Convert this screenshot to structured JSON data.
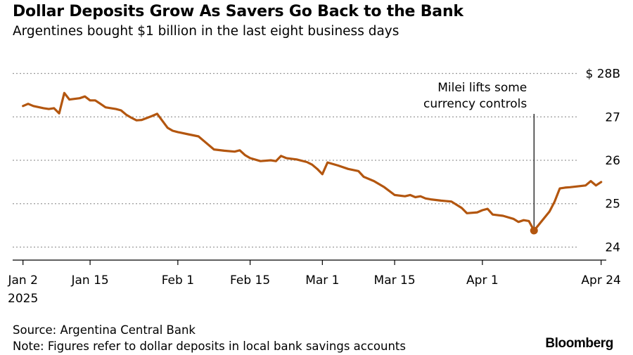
{
  "header": {
    "title": "Dollar Deposits Grow As Savers Go Back to the Bank",
    "subtitle": "Argentines bought $1 billion in the last eight business days"
  },
  "footer": {
    "source": "Source: Argentina Central Bank",
    "note": "Note: Figures refer to dollar deposits in local bank savings accounts",
    "brand": "Bloomberg"
  },
  "chart_data": {
    "type": "line",
    "title": "Dollar Deposits Grow As Savers Go Back to the Bank",
    "subtitle": "Argentines bought $1 billion in the last eight business days",
    "xlabel": "",
    "ylabel": "",
    "ylim": [
      23.7,
      28.3
    ],
    "xlim": [
      "2024-12-31",
      "2025-04-25"
    ],
    "grid": true,
    "line_color": "#b3560f",
    "y_ticks": [
      {
        "value": 28,
        "label": "$ 28B"
      },
      {
        "value": 27,
        "label": "27"
      },
      {
        "value": 26,
        "label": "26"
      },
      {
        "value": 25,
        "label": "25"
      },
      {
        "value": 24,
        "label": "24"
      }
    ],
    "x_ticks": [
      {
        "date": "2025-01-02",
        "label": "Jan 2",
        "label2": "2025"
      },
      {
        "date": "2025-01-15",
        "label": "Jan 15",
        "label2": ""
      },
      {
        "date": "2025-02-01",
        "label": "Feb 1",
        "label2": ""
      },
      {
        "date": "2025-02-15",
        "label": "Feb 15",
        "label2": ""
      },
      {
        "date": "2025-03-01",
        "label": "Mar 1",
        "label2": ""
      },
      {
        "date": "2025-03-15",
        "label": "Mar 15",
        "label2": ""
      },
      {
        "date": "2025-04-01",
        "label": "Apr 1",
        "label2": ""
      },
      {
        "date": "2025-04-24",
        "label": "Apr 24",
        "label2": ""
      }
    ],
    "series": [
      {
        "points": [
          [
            "2025-01-02",
            27.25
          ],
          [
            "2025-01-03",
            27.3
          ],
          [
            "2025-01-04",
            27.25
          ],
          [
            "2025-01-06",
            27.2
          ],
          [
            "2025-01-07",
            27.18
          ],
          [
            "2025-01-08",
            27.2
          ],
          [
            "2025-01-09",
            27.08
          ],
          [
            "2025-01-10",
            27.55
          ],
          [
            "2025-01-11",
            27.4
          ],
          [
            "2025-01-13",
            27.43
          ],
          [
            "2025-01-14",
            27.47
          ],
          [
            "2025-01-15",
            27.38
          ],
          [
            "2025-01-16",
            27.38
          ],
          [
            "2025-01-17",
            27.3
          ],
          [
            "2025-01-18",
            27.22
          ],
          [
            "2025-01-20",
            27.18
          ],
          [
            "2025-01-21",
            27.15
          ],
          [
            "2025-01-22",
            27.05
          ],
          [
            "2025-01-23",
            26.98
          ],
          [
            "2025-01-24",
            26.92
          ],
          [
            "2025-01-25",
            26.93
          ],
          [
            "2025-01-27",
            27.02
          ],
          [
            "2025-01-28",
            27.07
          ],
          [
            "2025-01-30",
            26.75
          ],
          [
            "2025-01-31",
            26.68
          ],
          [
            "2025-02-01",
            26.65
          ],
          [
            "2025-02-03",
            26.6
          ],
          [
            "2025-02-05",
            26.55
          ],
          [
            "2025-02-06",
            26.45
          ],
          [
            "2025-02-08",
            26.25
          ],
          [
            "2025-02-10",
            26.22
          ],
          [
            "2025-02-12",
            26.2
          ],
          [
            "2025-02-13",
            26.23
          ],
          [
            "2025-02-14",
            26.12
          ],
          [
            "2025-02-15",
            26.05
          ],
          [
            "2025-02-17",
            25.98
          ],
          [
            "2025-02-19",
            26.0
          ],
          [
            "2025-02-20",
            25.98
          ],
          [
            "2025-02-21",
            26.1
          ],
          [
            "2025-02-22",
            26.05
          ],
          [
            "2025-02-24",
            26.02
          ],
          [
            "2025-02-26",
            25.96
          ],
          [
            "2025-02-27",
            25.9
          ],
          [
            "2025-02-28",
            25.8
          ],
          [
            "2025-03-01",
            25.68
          ],
          [
            "2025-03-02",
            25.95
          ],
          [
            "2025-03-04",
            25.88
          ],
          [
            "2025-03-06",
            25.8
          ],
          [
            "2025-03-08",
            25.75
          ],
          [
            "2025-03-09",
            25.62
          ],
          [
            "2025-03-11",
            25.52
          ],
          [
            "2025-03-13",
            25.38
          ],
          [
            "2025-03-15",
            25.2
          ],
          [
            "2025-03-17",
            25.17
          ],
          [
            "2025-03-18",
            25.2
          ],
          [
            "2025-03-19",
            25.15
          ],
          [
            "2025-03-20",
            25.17
          ],
          [
            "2025-03-21",
            25.12
          ],
          [
            "2025-03-22",
            25.1
          ],
          [
            "2025-03-24",
            25.07
          ],
          [
            "2025-03-26",
            25.05
          ],
          [
            "2025-03-28",
            24.9
          ],
          [
            "2025-03-29",
            24.78
          ],
          [
            "2025-03-31",
            24.8
          ],
          [
            "2025-04-01",
            24.85
          ],
          [
            "2025-04-02",
            24.88
          ],
          [
            "2025-04-03",
            24.75
          ],
          [
            "2025-04-05",
            24.72
          ],
          [
            "2025-04-07",
            24.65
          ],
          [
            "2025-04-08",
            24.58
          ],
          [
            "2025-04-09",
            24.62
          ],
          [
            "2025-04-10",
            24.6
          ],
          [
            "2025-04-11",
            24.38
          ],
          [
            "2025-04-14",
            24.82
          ],
          [
            "2025-04-15",
            25.05
          ],
          [
            "2025-04-16",
            25.35
          ],
          [
            "2025-04-17",
            25.37
          ],
          [
            "2025-04-18",
            25.38
          ],
          [
            "2025-04-21",
            25.42
          ],
          [
            "2025-04-22",
            25.52
          ],
          [
            "2025-04-23",
            25.42
          ],
          [
            "2025-04-24",
            25.5
          ]
        ],
        "marker": {
          "date": "2025-04-11",
          "value": 24.38
        }
      }
    ],
    "annotations": [
      {
        "date": "2025-04-11",
        "lines": [
          "Milei lifts some",
          "currency controls"
        ]
      }
    ]
  }
}
